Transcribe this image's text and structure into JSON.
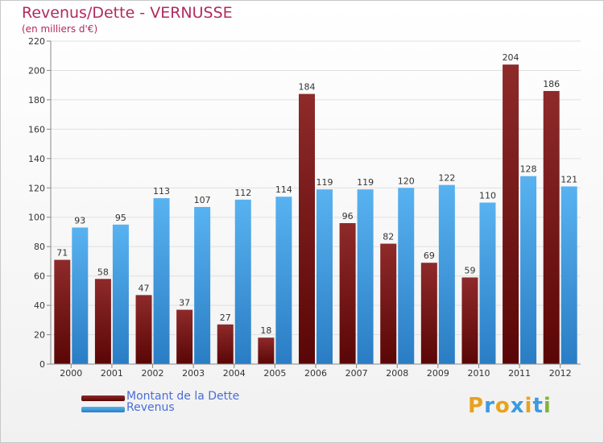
{
  "title": "Revenus/Dette - VERNUSSE",
  "subtitle": "(en milliers d'€)",
  "legend": [
    {
      "label": "Montant de la Dette",
      "color": "#7a1010"
    },
    {
      "label": "Revenus",
      "color": "#3d9ae0"
    }
  ],
  "logo": {
    "text": "Proxiti",
    "letter_colors": [
      "#e8a21c",
      "#3d9ae0",
      "#e8a21c",
      "#3d9ae0",
      "#e8a21c",
      "#3d9ae0",
      "#7fb53a"
    ]
  },
  "chart_data": {
    "type": "bar",
    "categories": [
      "2000",
      "2001",
      "2002",
      "2003",
      "2004",
      "2005",
      "2006",
      "2007",
      "2008",
      "2009",
      "2010",
      "2011",
      "2012"
    ],
    "series": [
      {
        "name": "Montant de la Dette",
        "color": "#7a1010",
        "values": [
          71,
          58,
          47,
          37,
          27,
          18,
          184,
          96,
          82,
          69,
          59,
          204,
          186
        ]
      },
      {
        "name": "Revenus",
        "color": "#3d9ae0",
        "values": [
          93,
          95,
          113,
          107,
          112,
          114,
          119,
          119,
          120,
          122,
          110,
          128,
          121
        ]
      }
    ],
    "ylim": [
      0,
      220
    ],
    "yticks": [
      0,
      20,
      40,
      60,
      80,
      100,
      120,
      140,
      160,
      180,
      200,
      220
    ],
    "grid": true,
    "legend_position": "bottom-left"
  }
}
